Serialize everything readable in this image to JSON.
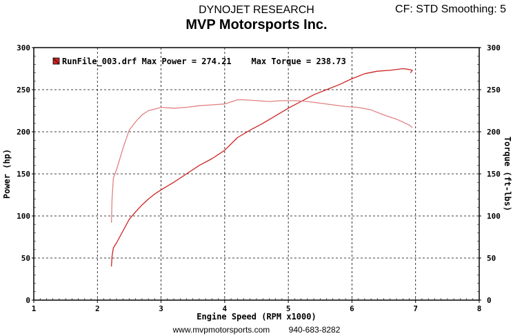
{
  "header": {
    "line1": "DYNOJET RESEARCH",
    "line2": "MVP Motorsports Inc.",
    "settings": "CF: STD  Smoothing: 5"
  },
  "footer": {
    "website": "www.mvpmotorsports.com",
    "phone": "940-683-8282"
  },
  "chart_data": {
    "type": "line",
    "title": "DYNOJET RESEARCH",
    "subtitle": "MVP Motorsports Inc.",
    "xlabel": "Engine Speed (RPM x1000)",
    "ylabel": "Power (hp)",
    "y2label": "Torque (ft-lbs)",
    "xlim": [
      1,
      8
    ],
    "ylim": [
      0,
      300
    ],
    "y2lim": [
      0,
      300
    ],
    "xticks": [
      "1",
      "2",
      "3",
      "4",
      "5",
      "6",
      "7",
      "8"
    ],
    "yticks": [
      "0",
      "50",
      "100",
      "150",
      "200",
      "250",
      "300"
    ],
    "grid": true,
    "legend": {
      "text": "RunFile_003.drf Max Power = 274.21    Max Torque = 238.73",
      "position": "top-left",
      "color": "#cc2222"
    },
    "series": [
      {
        "name": "Power",
        "color": "#cc2222",
        "x": [
          2.22,
          2.23,
          2.25,
          2.3,
          2.4,
          2.5,
          2.6,
          2.7,
          2.8,
          2.9,
          3.0,
          3.2,
          3.4,
          3.6,
          3.8,
          4.0,
          4.2,
          4.4,
          4.6,
          4.8,
          5.0,
          5.2,
          5.4,
          5.6,
          5.8,
          6.0,
          6.2,
          6.4,
          6.6,
          6.8,
          6.9,
          6.95,
          6.92
        ],
        "y": [
          40,
          52,
          62,
          68,
          82,
          96,
          105,
          113,
          120,
          126,
          131,
          140,
          150,
          160,
          168,
          178,
          193,
          202,
          210,
          219,
          228,
          236,
          244,
          250,
          256,
          263,
          269,
          272,
          273,
          275,
          274,
          273,
          270
        ]
      },
      {
        "name": "Torque",
        "color": "#e28080",
        "x": [
          2.22,
          2.23,
          2.25,
          2.3,
          2.4,
          2.5,
          2.6,
          2.7,
          2.8,
          2.9,
          3.0,
          3.2,
          3.4,
          3.6,
          3.8,
          4.0,
          4.2,
          4.3,
          4.5,
          4.7,
          4.9,
          5.1,
          5.3,
          5.5,
          5.7,
          5.9,
          6.1,
          6.3,
          6.5,
          6.7,
          6.9,
          6.95
        ],
        "y": [
          92,
          120,
          145,
          155,
          180,
          202,
          212,
          220,
          225,
          227,
          229,
          228,
          229,
          231,
          232,
          233,
          238,
          238,
          237,
          236,
          237,
          237,
          236,
          234,
          232,
          230,
          229,
          226,
          220,
          215,
          208,
          205
        ]
      }
    ]
  }
}
